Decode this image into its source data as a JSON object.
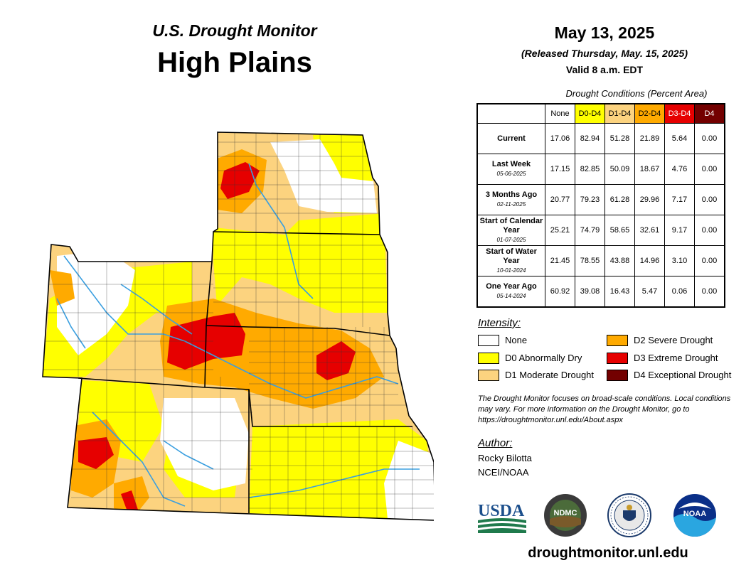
{
  "header": {
    "title": "U.S. Drought Monitor",
    "region": "High Plains",
    "date": "May 13, 2025",
    "released": "(Released Thursday, May. 15, 2025)",
    "valid": "Valid 8 a.m. EDT"
  },
  "table": {
    "caption": "Drought Conditions (Percent Area)",
    "columns": [
      "None",
      "D0-D4",
      "D1-D4",
      "D2-D4",
      "D3-D4",
      "D4"
    ],
    "rows": [
      {
        "label": "Current",
        "date": "",
        "values": [
          "17.06",
          "82.94",
          "51.28",
          "21.89",
          "5.64",
          "0.00"
        ]
      },
      {
        "label": "Last Week",
        "date": "05-06-2025",
        "values": [
          "17.15",
          "82.85",
          "50.09",
          "18.67",
          "4.76",
          "0.00"
        ]
      },
      {
        "label": "3 Months Ago",
        "date": "02-11-2025",
        "values": [
          "20.77",
          "79.23",
          "61.28",
          "29.96",
          "7.17",
          "0.00"
        ]
      },
      {
        "label": "Start of Calendar Year",
        "date": "01-07-2025",
        "values": [
          "25.21",
          "74.79",
          "58.65",
          "32.61",
          "9.17",
          "0.00"
        ]
      },
      {
        "label": "Start of Water Year",
        "date": "10-01-2024",
        "values": [
          "21.45",
          "78.55",
          "43.88",
          "14.96",
          "3.10",
          "0.00"
        ]
      },
      {
        "label": "One Year Ago",
        "date": "05-14-2024",
        "values": [
          "60.92",
          "39.08",
          "16.43",
          "5.47",
          "0.06",
          "0.00"
        ]
      }
    ]
  },
  "legend": {
    "heading": "Intensity:",
    "items": [
      {
        "label": "None",
        "color": "#ffffff"
      },
      {
        "label": "D0 Abnormally Dry",
        "color": "#ffff00"
      },
      {
        "label": "D1 Moderate Drought",
        "color": "#fcd37f"
      },
      {
        "label": "D2 Severe Drought",
        "color": "#ffaa00"
      },
      {
        "label": "D3 Extreme Drought",
        "color": "#e60000"
      },
      {
        "label": "D4 Exceptional Drought",
        "color": "#730000"
      }
    ]
  },
  "note": "The Drought Monitor focuses on broad-scale conditions. Local conditions may vary. For more information on the Drought Monitor, go to https://droughtmonitor.unl.edu/About.aspx",
  "author": {
    "heading": "Author:",
    "name": "Rocky Bilotta",
    "org": "NCEI/NOAA"
  },
  "logos": {
    "usda": "USDA",
    "ndmc": "NDMC",
    "doc": "department-of-commerce-seal",
    "noaa": "NOAA"
  },
  "footer_url": "droughtmonitor.unl.edu"
}
